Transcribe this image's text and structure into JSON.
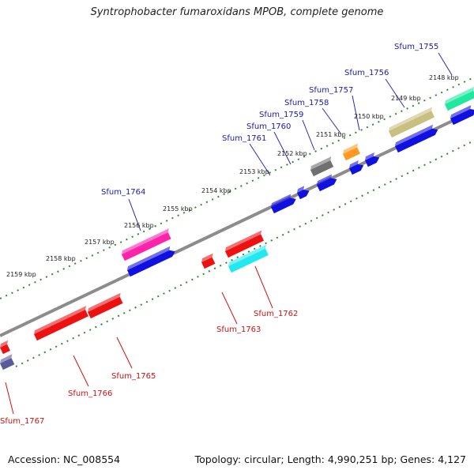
{
  "title": "Syntrophobacter fumaroxidans MPOB, complete genome",
  "footer": {
    "accession": "Accession: NC_008554",
    "stats": "Topology: circular; Length: 4,990,251 bp; Genes: 4,127"
  },
  "colors": {
    "backbone": "#8c8c8c",
    "tick_dots": "#2e8b2e",
    "forward_label": "#1a1aaa",
    "reverse_label": "#cc1111",
    "forward_gene": "#1010e0",
    "reverse_gene": "#ee1111",
    "magenta": "#ff22aa",
    "cyan": "#22e8f0",
    "olive": "#c8c080",
    "teal": "#20e8a0",
    "orange": "#ff9922",
    "gray": "#707070",
    "slate": "#5a5a9a"
  },
  "ticks": [
    "2148 kbp",
    "2149 kbp",
    "2150 kbp",
    "2151 kbp",
    "2152 kbp",
    "2153 kbp",
    "2154 kbp",
    "2155 kbp",
    "2156 kbp",
    "2157 kbp",
    "2158 kbp",
    "2159 kbp"
  ],
  "genes_forward": [
    "Sfum_1755",
    "Sfum_1756",
    "Sfum_1757",
    "Sfum_1758",
    "Sfum_1759",
    "Sfum_1760",
    "Sfum_1761",
    "Sfum_1764"
  ],
  "genes_reverse": [
    "Sfum_1762",
    "Sfum_1763",
    "Sfum_1765",
    "Sfum_1766",
    "Sfum_1767"
  ]
}
